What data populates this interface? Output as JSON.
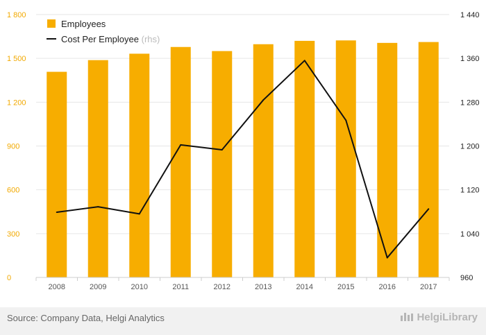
{
  "chart_data": {
    "type": "bar+line",
    "categories": [
      "2008",
      "2009",
      "2010",
      "2011",
      "2012",
      "2013",
      "2014",
      "2015",
      "2016",
      "2017"
    ],
    "series": [
      {
        "name": "Employees",
        "type": "bar",
        "axis": "left",
        "color": "#f7ad00",
        "values": [
          1408,
          1488,
          1532,
          1578,
          1550,
          1597,
          1620,
          1623,
          1606,
          1612
        ]
      },
      {
        "name": "Cost Per Employee",
        "name_note": "(rhs)",
        "type": "line",
        "axis": "right",
        "color": "#111111",
        "values": [
          1079,
          1089,
          1076,
          1202,
          1193,
          1284,
          1356,
          1247,
          996,
          1085
        ]
      }
    ],
    "y_left": {
      "min": 0,
      "max": 1800,
      "ticks": [
        "0",
        "300",
        "600",
        "900",
        "1 200",
        "1 500",
        "1 800"
      ]
    },
    "y_right": {
      "min": 960,
      "max": 1440,
      "ticks": [
        "960",
        "1 040",
        "1 120",
        "1 200",
        "1 280",
        "1 360",
        "1 440"
      ]
    },
    "grid": true,
    "legend_position": "top-left"
  },
  "footer": {
    "source": "Source: Company Data, Helgi Analytics",
    "brand": "HelgiLibrary"
  }
}
